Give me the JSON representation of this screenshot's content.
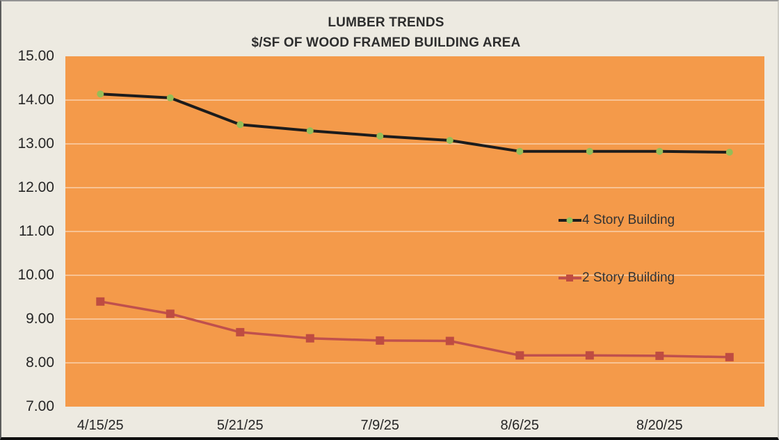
{
  "title": {
    "line1": "LUMBER TRENDS",
    "line2": "$/SF OF WOOD FRAMED BUILDING AREA"
  },
  "colors": {
    "canvas_background": "#edeae1",
    "plot_background": "#f49a4a",
    "gridline": "rgba(255,255,255,0.55)",
    "axis_text": "#262626",
    "title_text": "#2e2e2e",
    "series_4_story_line": "#1c1c1c",
    "series_4_story_marker": "#95bd57",
    "series_2_story_line": "#c0504d",
    "series_2_story_marker": "#bf4c41"
  },
  "chart_data": {
    "type": "line",
    "title": "LUMBER TRENDS",
    "subtitle": "$/SF OF WOOD FRAMED BUILDING AREA",
    "xlabel": "",
    "ylabel": "",
    "num_points": 10,
    "x_labeled_ticks": [
      "4/15/25",
      "5/21/25",
      "7/9/25",
      "8/6/25",
      "8/20/25"
    ],
    "xtick_point_indices": [
      0,
      2,
      4,
      6,
      8
    ],
    "series": [
      {
        "name": "4 Story Building",
        "line_color": "#1c1c1c",
        "marker": "circle",
        "marker_color": "#95bd57",
        "values": [
          14.14,
          14.05,
          13.44,
          13.3,
          13.18,
          13.08,
          12.83,
          12.83,
          12.83,
          12.81
        ]
      },
      {
        "name": "2 Story Building",
        "line_color": "#c0504d",
        "marker": "square",
        "marker_color": "#bf4c41",
        "values": [
          9.4,
          9.12,
          8.7,
          8.56,
          8.51,
          8.5,
          8.17,
          8.17,
          8.16,
          8.13
        ]
      }
    ],
    "ylim": [
      7,
      15
    ],
    "ytick_step": 1,
    "ytick_labels": [
      "15.00",
      "14.00",
      "13.00",
      "12.00",
      "11.00",
      "10.00",
      "9.00",
      "8.00",
      "7.00"
    ],
    "grid": true,
    "grid_color": "rgba(255,255,255,0.55)",
    "plot_bg": "#f49a4a",
    "legend_position": "inside-right"
  }
}
